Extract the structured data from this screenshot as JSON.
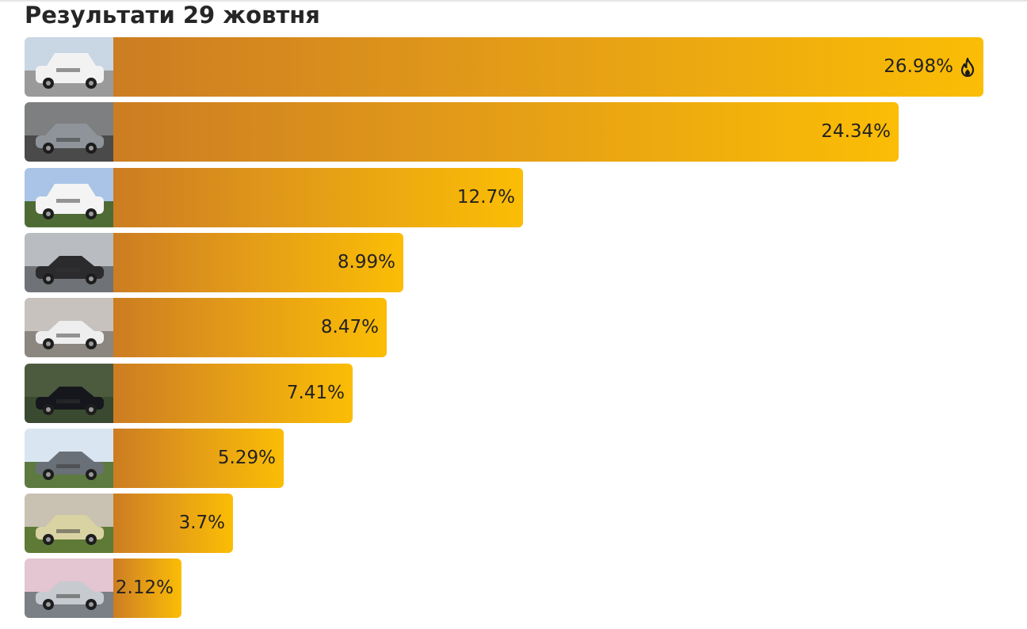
{
  "title": "Результати 29 жовтня",
  "icons": {
    "top_badge": "fire-icon"
  },
  "colors": {
    "bar_start": "#cc7d22",
    "bar_mid": "#e39b18",
    "bar_end": "#fbbd05",
    "text": "#222222"
  },
  "chart_data": {
    "type": "bar",
    "orientation": "horizontal",
    "title": "Результати 29 жовтня",
    "categories": [
      "car-1",
      "car-2",
      "car-3",
      "car-4",
      "car-5",
      "car-6",
      "car-7",
      "car-8",
      "car-9"
    ],
    "values": [
      26.98,
      24.34,
      12.7,
      8.99,
      8.47,
      7.41,
      5.29,
      3.7,
      2.12
    ],
    "labels": [
      "26.98%",
      "24.34%",
      "12.7%",
      "8.99%",
      "8.47%",
      "7.41%",
      "5.29%",
      "3.7%",
      "2.12%"
    ],
    "xlim": [
      0,
      26.98
    ],
    "grid": false,
    "legend": "none"
  },
  "rows": [
    {
      "label": "26.98%",
      "thumb": "white-suv-photo",
      "badge": "fire-icon"
    },
    {
      "label": "24.34%",
      "thumb": "grey-hatchback-photo"
    },
    {
      "label": "12.7%",
      "thumb": "white-offroader-photo"
    },
    {
      "label": "8.99%",
      "thumb": "dark-sedan-photo"
    },
    {
      "label": "8.47%",
      "thumb": "white-sedan-photo"
    },
    {
      "label": "7.41%",
      "thumb": "black-sedan-photo"
    },
    {
      "label": "5.29%",
      "thumb": "grey-liftback-photo"
    },
    {
      "label": "3.7%",
      "thumb": "beige-hatchback-photo"
    },
    {
      "label": "2.12%",
      "thumb": "silver-sedan-photo"
    }
  ]
}
